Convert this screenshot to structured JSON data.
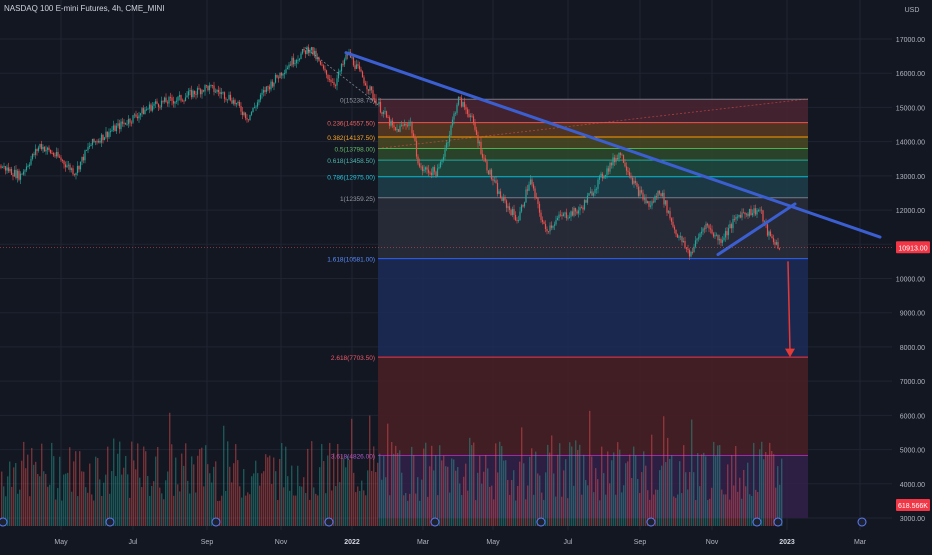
{
  "title": "NASDAQ 100 E-mini Futures, 4h, CME_MINI",
  "currency": "USD",
  "colors": {
    "background": "#131722",
    "grid": "#1f2433",
    "text": "#b2b5be",
    "up": "#26a69a",
    "down": "#ef5350",
    "trendline": "#3b5fd1",
    "arrow": "#e53935",
    "price_line": "#ef5350"
  },
  "chart_data": {
    "type": "candlestick",
    "x_axis": [
      "May",
      "Jul",
      "Sep",
      "Nov",
      "2022",
      "Mar",
      "May",
      "Jul",
      "Sep",
      "Nov",
      "2023",
      "Mar"
    ],
    "y_axis": {
      "ticks": [
        "17000.00",
        "16000.00",
        "15000.00",
        "14000.00",
        "13000.00",
        "12000.00",
        "11000.00",
        "10000.00",
        "9000.00",
        "8000.00",
        "7000.00",
        "6000.00",
        "5000.00",
        "4000.00",
        "3000.00"
      ],
      "range": [
        3000,
        17800
      ]
    },
    "series_path": [
      [
        "Apr 2021",
        13300
      ],
      [
        "May 2021",
        13100
      ],
      [
        "Jun 2021",
        13900
      ],
      [
        "Jul 2021",
        14700
      ],
      [
        "Aug 2021",
        15200
      ],
      [
        "Sep 2021",
        15600
      ],
      [
        "Oct 2021",
        15000
      ],
      [
        "Nov 2021",
        16200
      ],
      [
        "late Nov 2021",
        16750
      ],
      [
        "Dec 2021",
        15800
      ],
      [
        "end Dec 2021",
        16600
      ],
      [
        "Jan 2022",
        15100
      ],
      [
        "Feb 2022",
        14300
      ],
      [
        "early Mar 2022",
        13000
      ],
      [
        "late Mar 2022",
        15250
      ],
      [
        "Apr 2022",
        14100
      ],
      [
        "May 2022",
        11900
      ],
      [
        "Jun 2022",
        11200
      ],
      [
        "Jul 2022",
        12300
      ],
      [
        "mid Aug 2022",
        13700
      ],
      [
        "Sep 2022",
        11400
      ],
      [
        "Oct 2022",
        10700
      ],
      [
        "Nov 2022",
        11200
      ],
      [
        "early Dec 2022",
        12100
      ],
      [
        "late Dec 2022",
        10960
      ]
    ],
    "fibonacci": [
      {
        "label": "0(15238.75)",
        "value": 15238.75
      },
      {
        "label": "0.236(14557.50)",
        "value": 14557.5
      },
      {
        "label": "0.382(14137.50)",
        "value": 14137.5
      },
      {
        "label": "0.5(13798.00)",
        "value": 13798.0
      },
      {
        "label": "0.618(13458.50)",
        "value": 13458.5
      },
      {
        "label": "0.786(12975.00)",
        "value": 12975.0
      },
      {
        "label": "1(12359.25)",
        "value": 12359.25
      },
      {
        "label": "1.618(10581.00)",
        "value": 10581.0
      },
      {
        "label": "2.618(7703.50)",
        "value": 7703.5
      },
      {
        "label": "3.618(4826.00)",
        "value": 4826.0
      }
    ],
    "last_price": "10913.00",
    "volume_label": "618.566K",
    "annotations": [
      "descending trendline",
      "rising wedge support",
      "down arrow to 7703.50"
    ]
  }
}
